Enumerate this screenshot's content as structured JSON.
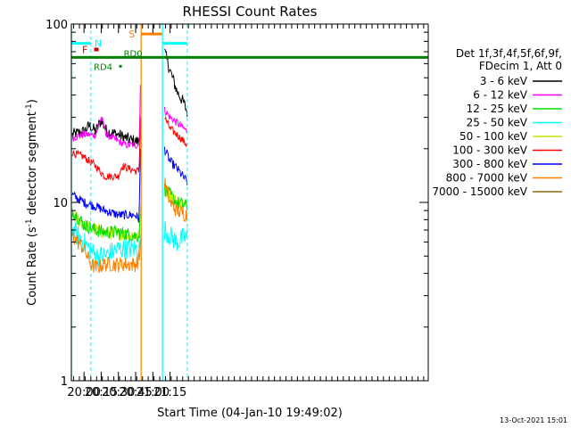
{
  "chart_data": {
    "type": "line",
    "title": "RHESSI Count Rates",
    "xlabel": "Start Time (04-Jan-10 19:49:02)",
    "ylabel_main": "Count Rate (s",
    "ylabel_sup1": "-1",
    "ylabel_mid": " detector segment",
    "ylabel_sup2": "-1",
    "ylabel_end": ")",
    "y_scale": "log",
    "ylim": [
      1,
      100
    ],
    "xlim_minutes": [
      19.8167,
      25.0
    ],
    "x_tick_minutes": [
      20.0,
      20.25,
      20.5,
      20.75,
      21.0,
      21.25
    ],
    "x_tick_labels": [
      "20:00",
      "20:15",
      "20:30",
      "20:45",
      "21:00",
      "21:15"
    ],
    "y_tick_values": [
      1,
      10,
      100
    ],
    "y_tick_labels": [
      "1",
      "10",
      "100"
    ],
    "timestamp": "13-Oct-2021 15:01",
    "legend": {
      "line1": "Det 1f,3f,4f,5f,6f,9f,",
      "line2": "FDecim 1, Att 0",
      "entries": [
        {
          "name": "3 - 6 keV",
          "color": "#000000"
        },
        {
          "name": "6 - 12 keV",
          "color": "#ff00ff"
        },
        {
          "name": "12 - 25 keV",
          "color": "#00e000"
        },
        {
          "name": "25 - 50 keV",
          "color": "#00ffff"
        },
        {
          "name": "50 - 100 keV",
          "color": "#c8e600"
        },
        {
          "name": "100 - 300 keV",
          "color": "#ff0000"
        },
        {
          "name": "300 - 800 keV",
          "color": "#0000ff"
        },
        {
          "name": "800 - 7000 keV",
          "color": "#ff8000"
        },
        {
          "name": "7000 - 15000 keV",
          "color": "#8b6914"
        }
      ]
    },
    "series": [
      {
        "name": "3 - 6 keV",
        "color": "#000000",
        "a": [
          [
            19.83,
            24
          ],
          [
            20.0,
            25
          ],
          [
            20.08,
            27
          ],
          [
            20.17,
            25
          ],
          [
            20.25,
            29
          ],
          [
            20.33,
            25
          ],
          [
            20.5,
            24
          ],
          [
            20.6,
            23
          ],
          [
            20.75,
            22
          ],
          [
            20.8,
            22
          ],
          [
            20.82,
            26
          ]
        ],
        "b": [
          [
            21.17,
            70
          ],
          [
            21.25,
            55
          ],
          [
            21.35,
            42
          ],
          [
            21.45,
            36
          ],
          [
            21.5,
            32
          ]
        ],
        "noise": 0.08
      },
      {
        "name": "6 - 12 keV",
        "color": "#ff00ff",
        "a": [
          [
            19.83,
            23
          ],
          [
            20.0,
            24
          ],
          [
            20.08,
            24
          ],
          [
            20.17,
            24
          ],
          [
            20.25,
            30
          ],
          [
            20.33,
            24
          ],
          [
            20.5,
            22
          ],
          [
            20.6,
            21
          ],
          [
            20.75,
            21
          ],
          [
            20.8,
            21
          ],
          [
            20.82,
            45
          ]
        ],
        "b": [
          [
            21.17,
            33
          ],
          [
            21.25,
            30
          ],
          [
            21.35,
            28
          ],
          [
            21.5,
            25
          ]
        ],
        "noise": 0.05
      },
      {
        "name": "100 - 300 keV",
        "color": "#ff0000",
        "a": [
          [
            19.83,
            19
          ],
          [
            20.0,
            18
          ],
          [
            20.08,
            17
          ],
          [
            20.17,
            16
          ],
          [
            20.3,
            14
          ],
          [
            20.5,
            14
          ],
          [
            20.55,
            16
          ],
          [
            20.75,
            15
          ],
          [
            20.8,
            15
          ],
          [
            20.82,
            30
          ]
        ],
        "b": [
          [
            21.17,
            30
          ],
          [
            21.25,
            26
          ],
          [
            21.35,
            24
          ],
          [
            21.5,
            21
          ]
        ],
        "noise": 0.05
      },
      {
        "name": "300 - 800 keV",
        "color": "#0000ff",
        "a": [
          [
            19.83,
            11
          ],
          [
            20.0,
            10
          ],
          [
            20.17,
            9.5
          ],
          [
            20.3,
            9
          ],
          [
            20.5,
            8.5
          ],
          [
            20.75,
            8.5
          ],
          [
            20.8,
            8
          ],
          [
            20.82,
            20
          ]
        ],
        "b": [
          [
            21.17,
            20
          ],
          [
            21.25,
            17
          ],
          [
            21.35,
            15.5
          ],
          [
            21.5,
            13
          ]
        ],
        "noise": 0.06
      },
      {
        "name": "50 - 100 keV",
        "color": "#c8e600",
        "a": [
          [
            19.83,
            8.5
          ],
          [
            20.0,
            7.5
          ],
          [
            20.17,
            7
          ],
          [
            20.3,
            6.8
          ],
          [
            20.5,
            6.7
          ],
          [
            20.75,
            6.5
          ],
          [
            20.8,
            6.5
          ],
          [
            20.82,
            9
          ]
        ],
        "b": [
          [
            21.17,
            12
          ],
          [
            21.25,
            11
          ],
          [
            21.35,
            10
          ],
          [
            21.5,
            9.5
          ]
        ],
        "noise": 0.09
      },
      {
        "name": "12 - 25 keV",
        "color": "#00e000",
        "a": [
          [
            19.83,
            9
          ],
          [
            20.0,
            7.5
          ],
          [
            20.17,
            7
          ],
          [
            20.3,
            6.8
          ],
          [
            20.5,
            6.8
          ],
          [
            20.75,
            6.5
          ],
          [
            20.8,
            6.5
          ],
          [
            20.82,
            9
          ]
        ],
        "b": [
          [
            21.17,
            12
          ],
          [
            21.25,
            11
          ],
          [
            21.35,
            10
          ],
          [
            21.5,
            9.5
          ]
        ],
        "noise": 0.09
      },
      {
        "name": "25 - 50 keV",
        "color": "#00ffff",
        "a": [
          [
            19.83,
            7
          ],
          [
            20.0,
            6
          ],
          [
            20.17,
            5
          ],
          [
            20.3,
            5
          ],
          [
            20.5,
            5.5
          ],
          [
            20.75,
            5.5
          ],
          [
            20.8,
            5.5
          ],
          [
            20.82,
            6
          ]
        ],
        "b": [
          [
            21.17,
            7
          ],
          [
            21.25,
            6.5
          ],
          [
            21.35,
            6
          ],
          [
            21.5,
            6.5
          ]
        ],
        "noise": 0.14
      },
      {
        "name": "800 - 7000 keV",
        "color": "#ff8000",
        "a": [
          [
            19.83,
            6.5
          ],
          [
            20.0,
            5.5
          ],
          [
            20.1,
            4.5
          ],
          [
            20.17,
            4.3
          ],
          [
            20.3,
            4.5
          ],
          [
            20.5,
            4.5
          ],
          [
            20.75,
            4.5
          ],
          [
            20.8,
            4.8
          ],
          [
            20.82,
            6
          ]
        ],
        "b": [
          [
            21.17,
            13
          ],
          [
            21.25,
            10
          ],
          [
            21.35,
            9
          ],
          [
            21.5,
            8.5
          ]
        ],
        "noise": 0.1
      }
    ],
    "annotations": {
      "attenuator_N": "N",
      "flare_F": "F",
      "saa_S": "S",
      "rd0": "RD0",
      "rd4": "RD4",
      "rd_level": 65,
      "n_level": 78,
      "s_level": 88,
      "f_level": 72,
      "n_start": 19.8167,
      "n_end": 20.1,
      "n2_start": 21.14,
      "n2_end": 21.5,
      "f_time": 20.18,
      "s_start": 20.83,
      "s_end": 21.13,
      "rd0_time": 20.55,
      "rd4_time": 20.53
    }
  }
}
